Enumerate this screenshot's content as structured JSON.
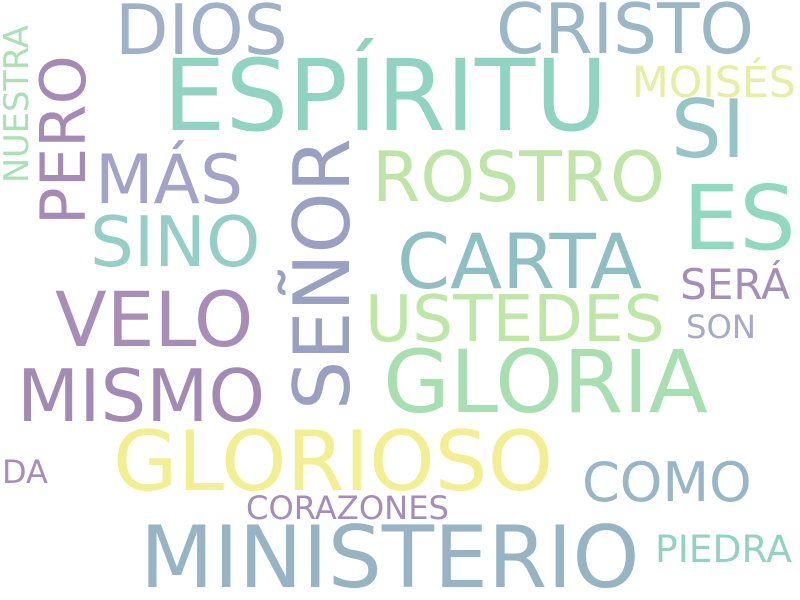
{
  "words": [
    {
      "id": "espiritu",
      "text": "ESPÍRITU",
      "color": "#8fd4c0"
    },
    {
      "id": "glorioso",
      "text": "GLORIOSO",
      "color": "#f1ef8f"
    },
    {
      "id": "gloria",
      "text": "GLORIA",
      "color": "#a8dfb0"
    },
    {
      "id": "ministerio",
      "text": "MINISTERIO",
      "color": "#97b4c5"
    },
    {
      "id": "senor",
      "text": "SEÑOR",
      "color": "#9aa0c2"
    },
    {
      "id": "mismo",
      "text": "MISMO",
      "color": "#a28ab5"
    },
    {
      "id": "velo",
      "text": "VELO",
      "color": "#a78db8"
    },
    {
      "id": "carta",
      "text": "CARTA",
      "color": "#8ebfc3"
    },
    {
      "id": "rostro",
      "text": "ROSTRO",
      "color": "#bde5a6"
    },
    {
      "id": "es",
      "text": "ES",
      "color": "#8ed9bf"
    },
    {
      "id": "mas",
      "text": "MÁS",
      "color": "#a3a2c8"
    },
    {
      "id": "ustedes",
      "text": "USTEDES",
      "color": "#bce7a4"
    },
    {
      "id": "cristo",
      "text": "CRISTO",
      "color": "#99b7c6"
    },
    {
      "id": "dios",
      "text": "DIOS",
      "color": "#9fb0c9"
    },
    {
      "id": "como",
      "text": "COMO",
      "color": "#97b6c7"
    },
    {
      "id": "sino",
      "text": "SINO",
      "color": "#93cfc4"
    },
    {
      "id": "pero",
      "text": "PERO",
      "color": "#a58ab5"
    },
    {
      "id": "si",
      "text": "SI",
      "color": "#96c4c7"
    },
    {
      "id": "moises",
      "text": "MOISÉS",
      "color": "#e6eea0"
    },
    {
      "id": "corazones",
      "text": "CORAZONES",
      "color": "#a48db9"
    },
    {
      "id": "sera",
      "text": "SERÁ",
      "color": "#a58fba"
    },
    {
      "id": "piedra",
      "text": "PIEDRA",
      "color": "#92d2c2"
    },
    {
      "id": "son",
      "text": "SON",
      "color": "#a8a8ca"
    },
    {
      "id": "nuestra",
      "text": "NUESTRA",
      "color": "#a7e1b4"
    },
    {
      "id": "da",
      "text": "DA",
      "color": "#a58fba"
    }
  ]
}
